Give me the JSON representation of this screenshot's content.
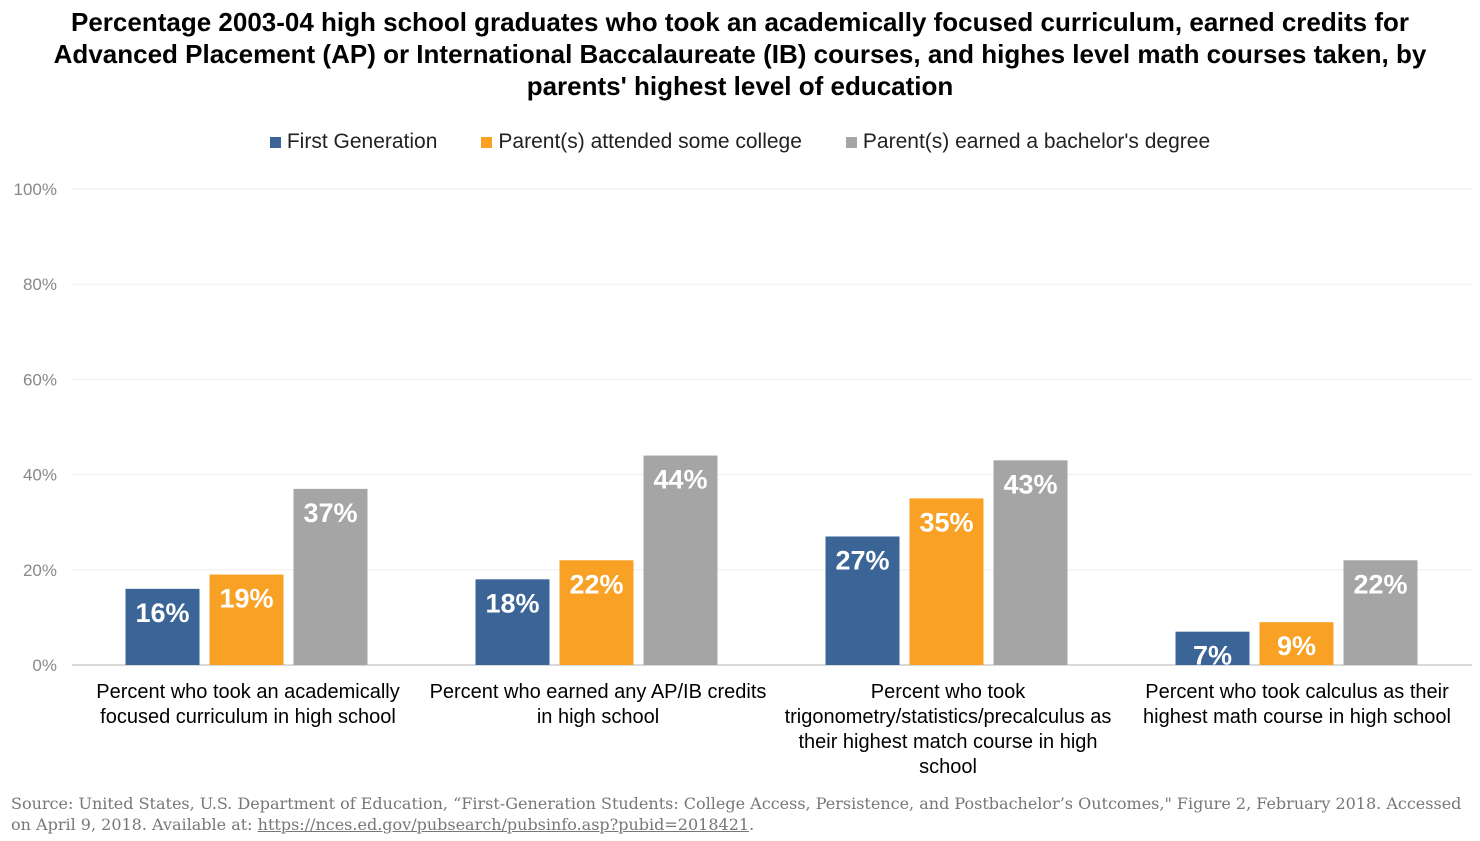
{
  "chart_data": {
    "type": "bar",
    "title": "Percentage 2003-04 high school graduates who took an academically focused curriculum, earned credits for Advanced Placement (AP) or International Baccalaureate (IB) courses, and highes level math courses taken, by parents' highest level of education",
    "categories": [
      "Percent who took an academically focused curriculum in high school",
      "Percent who earned any AP/IB credits in high school",
      "Percent who took trigonometry/statistics/precalculus as their highest match course in high school",
      "Percent who took calculus as their highest math course in high school"
    ],
    "series": [
      {
        "name": "First Generation",
        "color": "#3B6497",
        "values": [
          16,
          18,
          27,
          7
        ]
      },
      {
        "name": "Parent(s) attended some college",
        "color": "#F9A124",
        "values": [
          19,
          22,
          35,
          9
        ]
      },
      {
        "name": "Parent(s) earned a bachelor's degree",
        "color": "#A5A5A5",
        "values": [
          37,
          44,
          43,
          22
        ]
      }
    ],
    "ylim": [
      0,
      100
    ],
    "yticks": [
      "0%",
      "20%",
      "40%",
      "60%",
      "80%",
      "100%"
    ],
    "grid": true,
    "legend_position": "top",
    "data_label_suffix": "%"
  },
  "source": {
    "text": "Source: United States, U.S. Department of Education, “First-Generation Students: College Access, Persistence, and Postbachelor’s Outcomes,\" Figure 2, February 2018. Accessed on April 9, 2018. Available at: ",
    "link": "https://nces.ed.gov/pubsearch/pubsinfo.asp?pubid=2018421",
    "end": "."
  }
}
